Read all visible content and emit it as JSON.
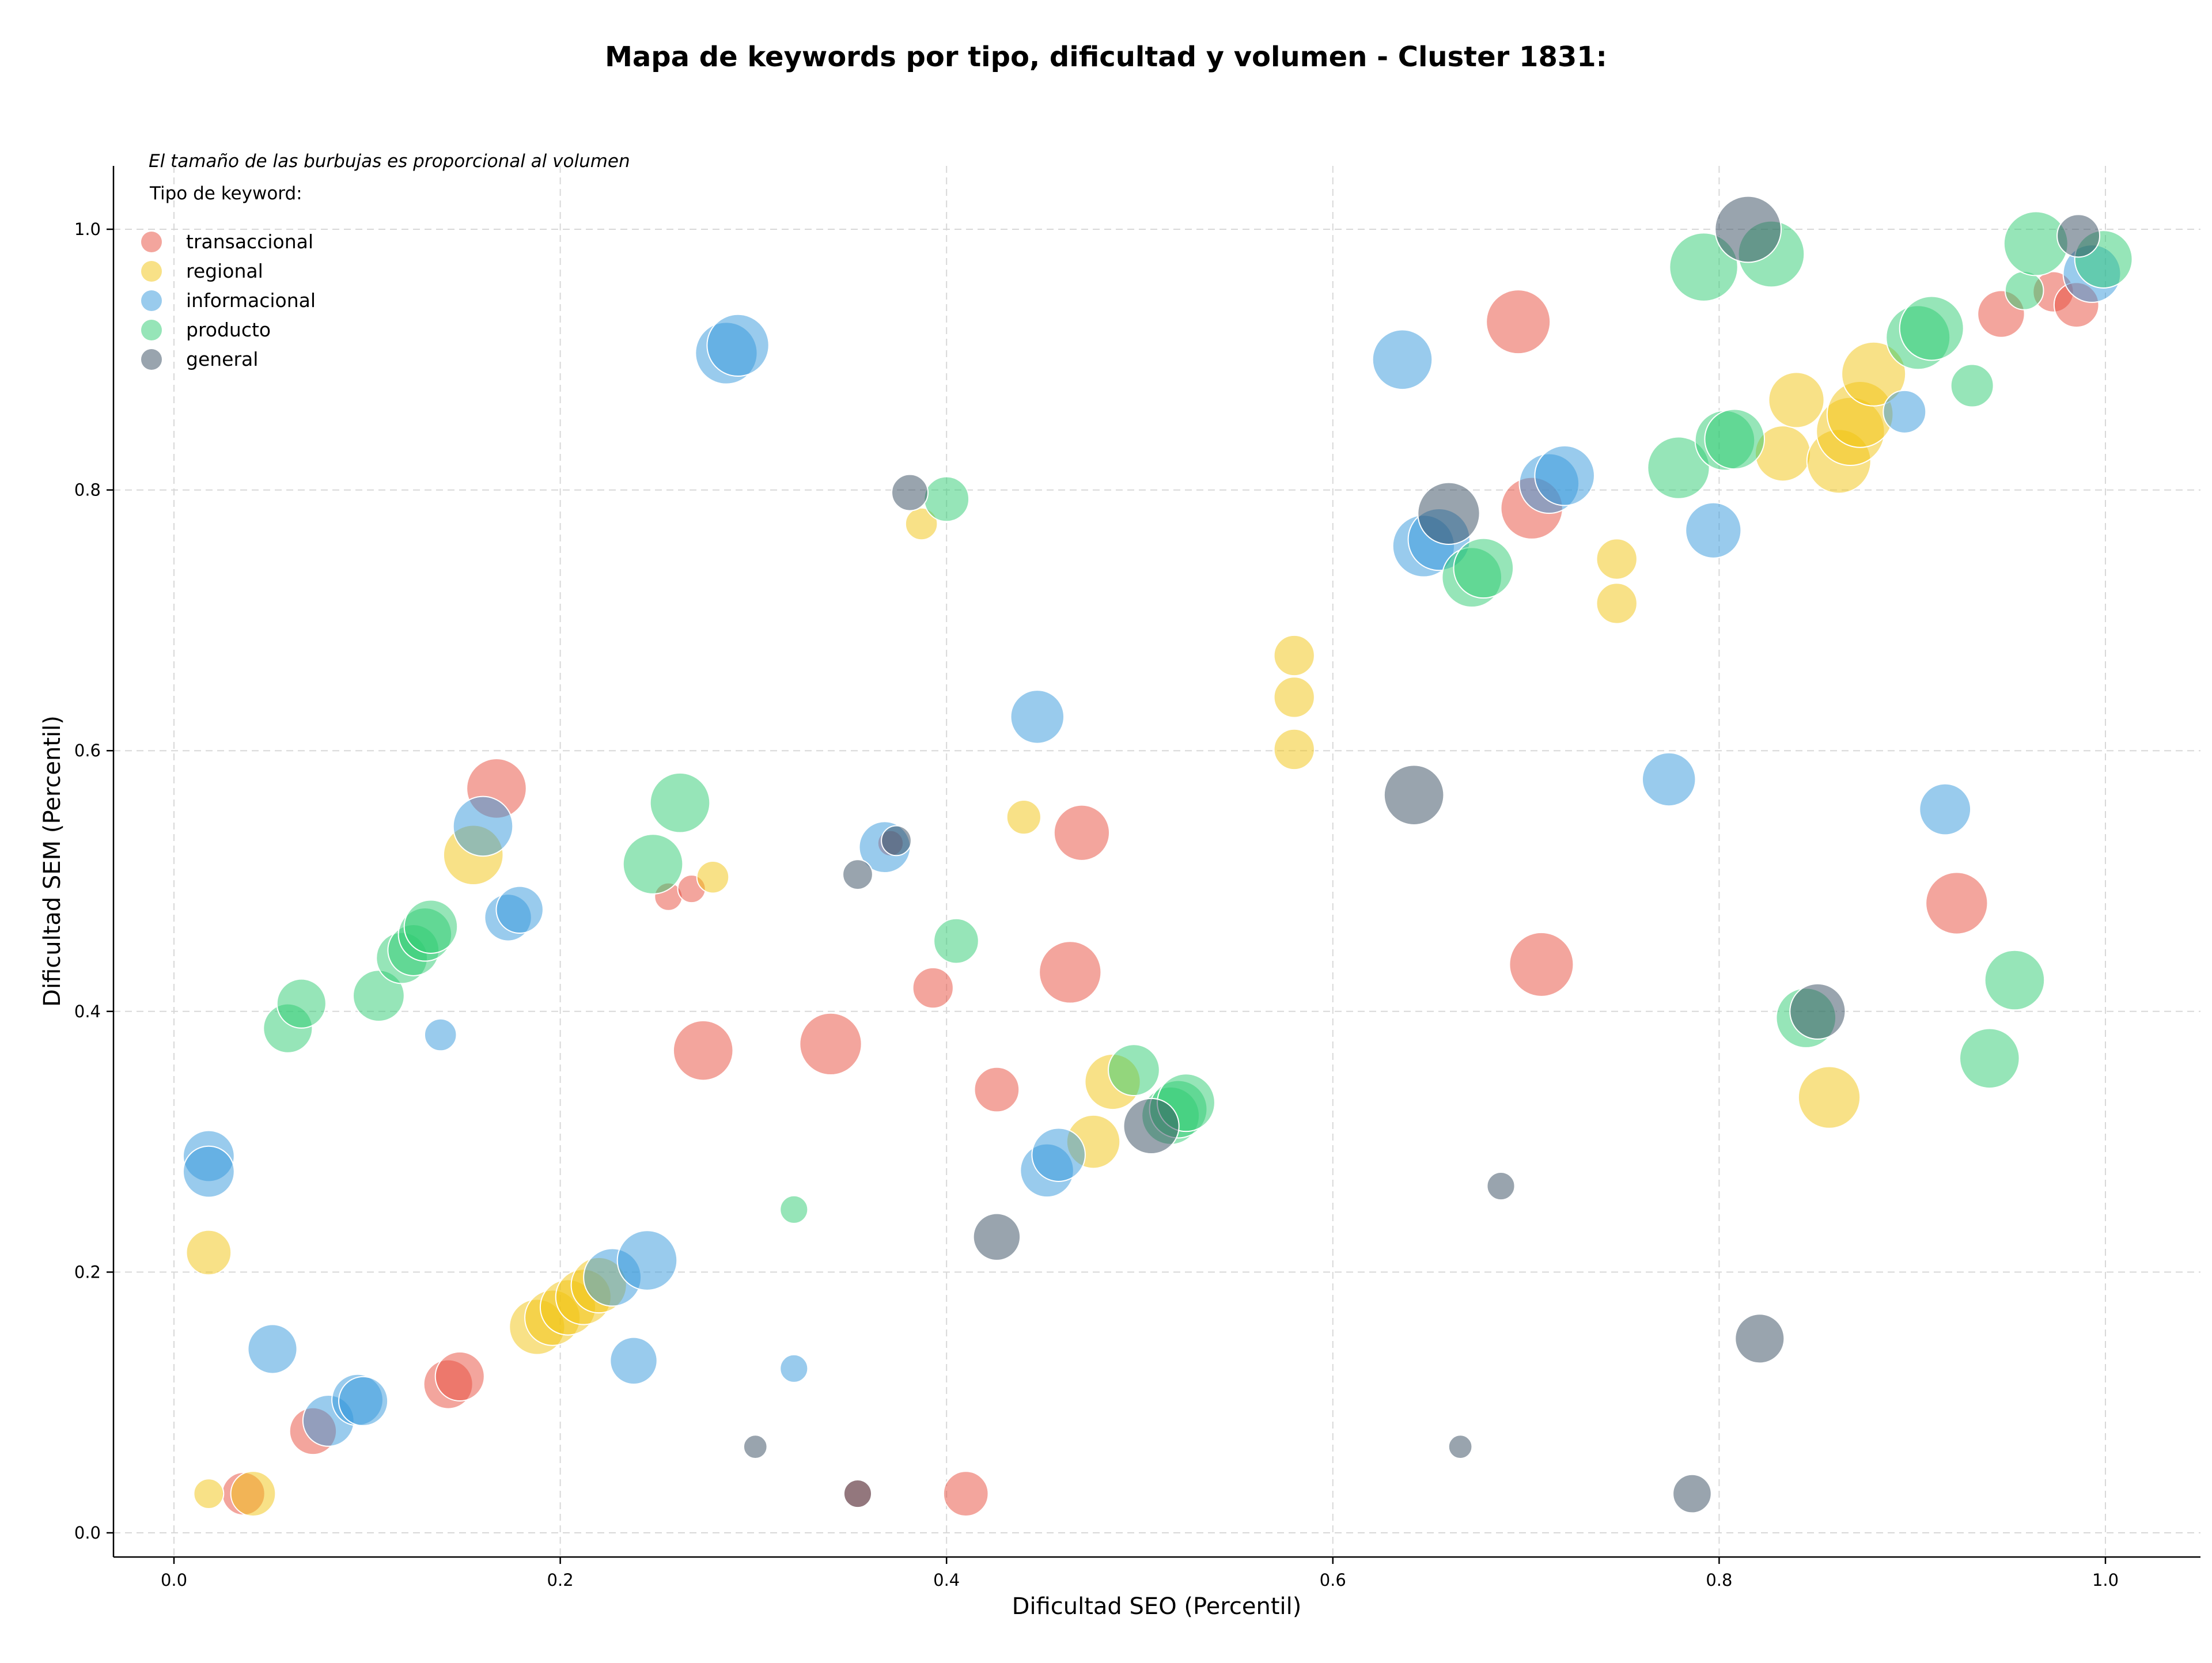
{
  "chart_data": {
    "type": "scatter",
    "title": "Mapa de keywords por tipo, dificultad y volumen - Cluster 1831:",
    "xlabel": "Dificultad SEO (Percentil)",
    "ylabel": "Dificultad SEM (Percentil)",
    "xlim": [
      -0.03,
      1.05
    ],
    "ylim": [
      -0.017,
      1.05
    ],
    "xticks": [
      "0.0",
      "0.2",
      "0.4",
      "0.6",
      "0.8",
      "1.0"
    ],
    "yticks": [
      "0.0",
      "0.2",
      "0.4",
      "0.6",
      "0.8",
      "1.0"
    ],
    "grid": true,
    "size_note": "El tamaño de las burbujas es proporcional al volumen",
    "legend_title": "Tipo de keyword:",
    "legend_position": "top-left",
    "series": [
      {
        "name": "transaccional",
        "color": "#e74c3c",
        "points": [
          [
            0.036,
            0.03,
            2
          ],
          [
            0.072,
            0.078,
            2.2
          ],
          [
            0.142,
            0.114,
            2.3
          ],
          [
            0.148,
            0.12,
            2.3
          ],
          [
            0.167,
            0.571,
            2.8
          ],
          [
            0.256,
            0.488,
            1.3
          ],
          [
            0.268,
            0.494,
            1.3
          ],
          [
            0.274,
            0.37,
            2.8
          ],
          [
            0.34,
            0.375,
            2.9
          ],
          [
            0.393,
            0.418,
            1.9
          ],
          [
            0.41,
            0.03,
            2.1
          ],
          [
            0.426,
            0.34,
            2.1
          ],
          [
            0.371,
            0.529,
            1.2
          ],
          [
            0.464,
            0.43,
            2.9
          ],
          [
            0.47,
            0.537,
            2.6
          ],
          [
            0.354,
            0.03,
            1.3
          ],
          [
            0.696,
            0.929,
            3.0
          ],
          [
            0.703,
            0.786,
            2.9
          ],
          [
            0.708,
            0.436,
            3.0
          ],
          [
            0.923,
            0.483,
            2.9
          ],
          [
            0.946,
            0.935,
            2.2
          ],
          [
            0.973,
            0.952,
            1.9
          ],
          [
            0.985,
            0.942,
            2.1
          ]
        ]
      },
      {
        "name": "regional",
        "color": "#f1c40f",
        "points": [
          [
            0.018,
            0.03,
            1.4
          ],
          [
            0.018,
            0.215,
            2.1
          ],
          [
            0.041,
            0.03,
            2.1
          ],
          [
            0.155,
            0.52,
            2.8
          ],
          [
            0.188,
            0.158,
            2.6
          ],
          [
            0.196,
            0.165,
            2.6
          ],
          [
            0.204,
            0.173,
            2.6
          ],
          [
            0.212,
            0.181,
            2.6
          ],
          [
            0.22,
            0.19,
            2.6
          ],
          [
            0.279,
            0.503,
            1.5
          ],
          [
            0.387,
            0.774,
            1.5
          ],
          [
            0.44,
            0.549,
            1.6
          ],
          [
            0.476,
            0.3,
            2.5
          ],
          [
            0.486,
            0.346,
            2.6
          ],
          [
            0.58,
            0.673,
            1.9
          ],
          [
            0.58,
            0.641,
            1.9
          ],
          [
            0.58,
            0.601,
            1.9
          ],
          [
            0.747,
            0.747,
            1.9
          ],
          [
            0.747,
            0.713,
            1.9
          ],
          [
            0.833,
            0.828,
            2.6
          ],
          [
            0.84,
            0.869,
            2.6
          ],
          [
            0.857,
            0.334,
            2.9
          ],
          [
            0.862,
            0.822,
            3.0
          ],
          [
            0.868,
            0.845,
            3.2
          ],
          [
            0.873,
            0.858,
            3.1
          ],
          [
            0.88,
            0.889,
            3.0
          ]
        ]
      },
      {
        "name": "informacional",
        "color": "#3498db",
        "points": [
          [
            0.018,
            0.289,
            2.4
          ],
          [
            0.018,
            0.277,
            2.4
          ],
          [
            0.051,
            0.141,
            2.3
          ],
          [
            0.08,
            0.086,
            2.4
          ],
          [
            0.095,
            0.102,
            2.4
          ],
          [
            0.098,
            0.101,
            2.3
          ],
          [
            0.138,
            0.382,
            1.5
          ],
          [
            0.16,
            0.542,
            2.8
          ],
          [
            0.173,
            0.472,
            2.2
          ],
          [
            0.179,
            0.478,
            2.2
          ],
          [
            0.227,
            0.196,
            2.7
          ],
          [
            0.238,
            0.132,
            2.2
          ],
          [
            0.245,
            0.209,
            2.8
          ],
          [
            0.286,
            0.905,
            2.9
          ],
          [
            0.292,
            0.911,
            2.9
          ],
          [
            0.321,
            0.126,
            1.3
          ],
          [
            0.368,
            0.526,
            2.4
          ],
          [
            0.447,
            0.626,
            2.5
          ],
          [
            0.452,
            0.278,
            2.5
          ],
          [
            0.458,
            0.29,
            2.5
          ],
          [
            0.636,
            0.9,
            2.8
          ],
          [
            0.647,
            0.757,
            2.9
          ],
          [
            0.655,
            0.762,
            2.9
          ],
          [
            0.712,
            0.805,
            2.8
          ],
          [
            0.72,
            0.811,
            2.8
          ],
          [
            0.774,
            0.578,
            2.5
          ],
          [
            0.797,
            0.769,
            2.6
          ],
          [
            0.896,
            0.86,
            2.0
          ],
          [
            0.917,
            0.555,
            2.4
          ],
          [
            0.993,
            0.966,
            2.7
          ]
        ]
      },
      {
        "name": "producto",
        "color": "#2ecc71",
        "points": [
          [
            0.059,
            0.387,
            2.3
          ],
          [
            0.066,
            0.406,
            2.3
          ],
          [
            0.106,
            0.412,
            2.4
          ],
          [
            0.118,
            0.441,
            2.4
          ],
          [
            0.124,
            0.447,
            2.4
          ],
          [
            0.13,
            0.459,
            2.5
          ],
          [
            0.133,
            0.465,
            2.5
          ],
          [
            0.248,
            0.513,
            2.8
          ],
          [
            0.262,
            0.56,
            2.8
          ],
          [
            0.321,
            0.248,
            1.3
          ],
          [
            0.4,
            0.793,
            2.1
          ],
          [
            0.405,
            0.454,
            2.1
          ],
          [
            0.497,
            0.355,
            2.4
          ],
          [
            0.516,
            0.32,
            2.7
          ],
          [
            0.52,
            0.325,
            2.7
          ],
          [
            0.524,
            0.33,
            2.7
          ],
          [
            0.672,
            0.733,
            2.8
          ],
          [
            0.678,
            0.74,
            2.8
          ],
          [
            0.779,
            0.817,
            2.9
          ],
          [
            0.792,
            0.971,
            3.2
          ],
          [
            0.803,
            0.838,
            2.8
          ],
          [
            0.808,
            0.839,
            2.8
          ],
          [
            0.827,
            0.981,
            3.1
          ],
          [
            0.845,
            0.395,
            2.8
          ],
          [
            0.903,
            0.917,
            3.0
          ],
          [
            0.91,
            0.924,
            3.0
          ],
          [
            0.931,
            0.88,
            2.0
          ],
          [
            0.94,
            0.364,
            2.8
          ],
          [
            0.953,
            0.424,
            2.8
          ],
          [
            0.958,
            0.953,
            1.8
          ],
          [
            0.964,
            0.989,
            3.0
          ],
          [
            0.999,
            0.977,
            2.7
          ]
        ]
      },
      {
        "name": "general",
        "color": "#34495e",
        "points": [
          [
            0.301,
            0.066,
            1.1
          ],
          [
            0.354,
            0.505,
            1.4
          ],
          [
            0.354,
            0.03,
            1.3
          ],
          [
            0.381,
            0.798,
            1.7
          ],
          [
            0.374,
            0.531,
            1.4
          ],
          [
            0.426,
            0.227,
            2.2
          ],
          [
            0.506,
            0.312,
            2.6
          ],
          [
            0.642,
            0.566,
            2.8
          ],
          [
            0.66,
            0.782,
            2.9
          ],
          [
            0.666,
            0.066,
            1.1
          ],
          [
            0.687,
            0.266,
            1.3
          ],
          [
            0.786,
            0.03,
            1.8
          ],
          [
            0.815,
            1.0,
            3.1
          ],
          [
            0.821,
            0.149,
            2.3
          ],
          [
            0.851,
            0.4,
            2.6
          ],
          [
            0.986,
            0.995,
            2.0
          ]
        ]
      }
    ]
  }
}
